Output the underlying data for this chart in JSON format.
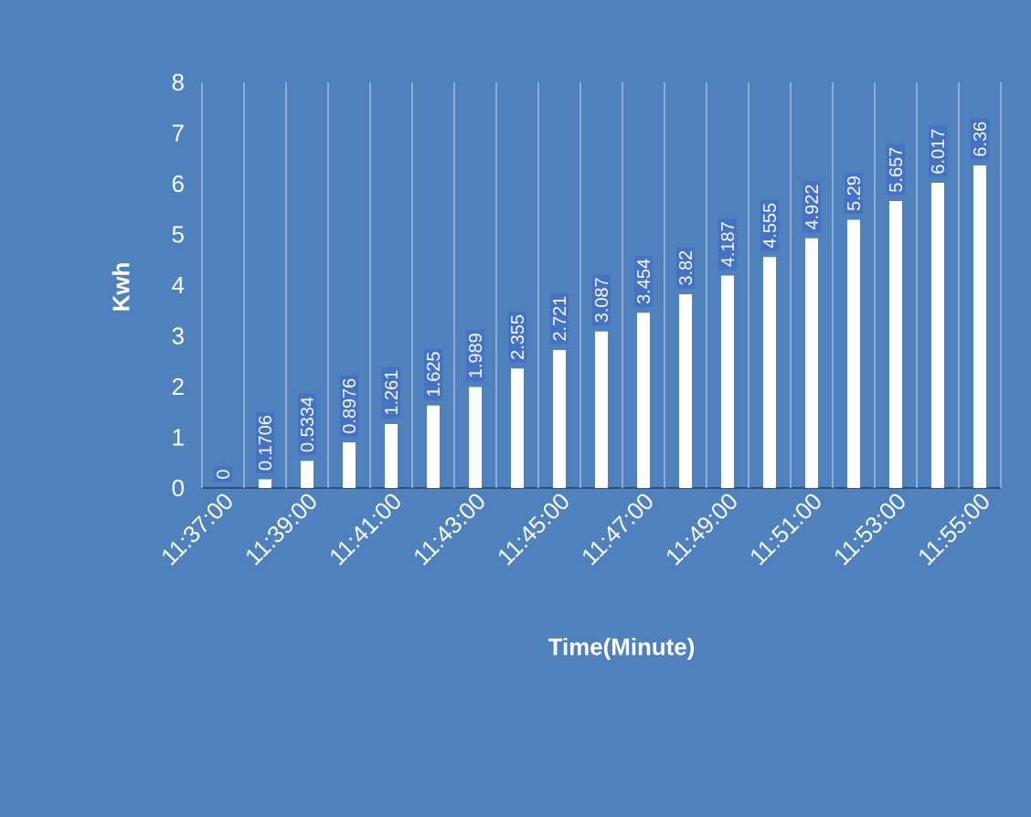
{
  "chart_data": {
    "type": "bar",
    "xlabel": "Time(Minute)",
    "ylabel": "Kwh",
    "categories": [
      "11:37:00",
      null,
      "11:39:00",
      null,
      "11:41:00",
      null,
      "11:43:00",
      null,
      "11:45:00",
      null,
      "11:47:00",
      null,
      "11:49:00",
      null,
      "11:51:00",
      null,
      "11:53:00",
      null,
      "11:55:00"
    ],
    "values": [
      0,
      0.1706,
      0.5334,
      0.8976,
      1.261,
      1.625,
      1.989,
      2.355,
      2.721,
      3.087,
      3.454,
      3.82,
      4.187,
      4.555,
      4.922,
      5.29,
      5.657,
      6.017,
      6.36
    ],
    "value_labels": [
      "0",
      "0.1706",
      "0.5334",
      "0.8976",
      "1.261",
      "1.625",
      "1.989",
      "2.355",
      "2.721",
      "3.087",
      "3.454",
      "3.82",
      "4.187",
      "4.555",
      "4.922",
      "5.29",
      "5.657",
      "6.017",
      "6.36"
    ],
    "color": "#ffffff",
    "ylim": [
      0,
      8
    ],
    "yticks": [
      0,
      1,
      2,
      3,
      4,
      5,
      6,
      7,
      8
    ],
    "grid": "x"
  }
}
